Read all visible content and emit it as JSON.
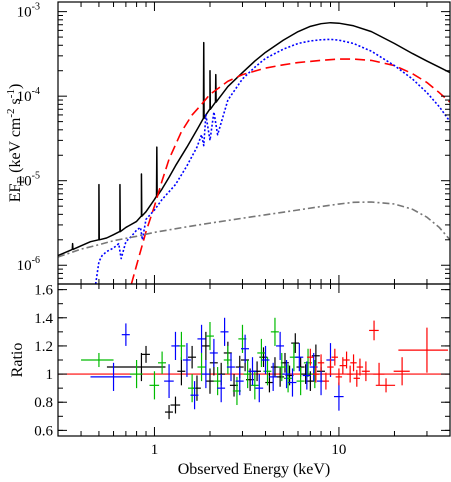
{
  "chart_data": [
    {
      "type": "line",
      "panel": "spectrum",
      "xlabel": "",
      "ylabel": "EF_E (keV cm^-2 s^-1)",
      "ylabel_parts": {
        "base": "EF",
        "sub": "E",
        "units_open": " (keV cm",
        "exp1": "-2",
        "mid": " s",
        "exp2": "-1",
        "close": ")"
      },
      "x_scale": "log",
      "y_scale": "log",
      "xlim": [
        0.3,
        40
      ],
      "ylim": [
        6e-07,
        0.0013
      ],
      "y_ticks": [
        {
          "value": 1e-06,
          "base": "10",
          "exp": "-6"
        },
        {
          "value": 1e-05,
          "base": "10",
          "exp": "-5"
        },
        {
          "value": 0.0001,
          "base": "10",
          "exp": "-4"
        },
        {
          "value": 0.001,
          "base": "10",
          "exp": "-3"
        }
      ],
      "series": [
        {
          "id": "total",
          "color": "#000000",
          "style": "solid",
          "x": [
            0.3,
            0.35,
            0.4,
            0.45,
            0.5,
            0.55,
            0.6,
            0.65,
            0.7,
            0.8,
            0.85,
            0.9,
            1.0,
            1.1,
            1.2,
            1.3,
            1.5,
            1.7,
            1.8,
            1.9,
            2.0,
            2.1,
            2.2,
            2.5,
            3.0,
            3.5,
            4.0,
            5.0,
            6.0,
            7.0,
            8.0,
            9.0,
            10.0,
            12.0,
            15.0,
            20.0,
            25.0,
            30.0,
            35.0,
            40.0
          ],
          "y": [
            1.3e-06,
            1.5e-06,
            1.7e-06,
            1.9e-06,
            2e-06,
            2.1e-06,
            2.3e-06,
            2.5e-06,
            2.8e-06,
            3.3e-06,
            3.8e-06,
            4.3e-06,
            6e-06,
            8e-06,
            1.1e-05,
            1.5e-05,
            2.5e-05,
            4e-05,
            5e-05,
            6e-05,
            7e-05,
            8e-05,
            9e-05,
            0.00013,
            0.00019,
            0.00026,
            0.00033,
            0.00046,
            0.00058,
            0.00067,
            0.00072,
            0.00074,
            0.00073,
            0.00068,
            0.00058,
            0.00042,
            0.00032,
            0.00026,
            0.00022,
            0.00019
          ],
          "lines": [
            {
              "x": 0.36,
              "peak": 1.8e-06
            },
            {
              "x": 0.5,
              "peak": 9e-06
            },
            {
              "x": 0.65,
              "peak": 9e-06
            },
            {
              "x": 0.85,
              "peak": 1.2e-05
            },
            {
              "x": 1.03,
              "peak": 2.5e-05
            },
            {
              "x": 1.85,
              "peak": 0.00043
            },
            {
              "x": 2.0,
              "peak": 0.0002
            },
            {
              "x": 2.15,
              "peak": 0.00018
            }
          ]
        },
        {
          "id": "red-component",
          "color": "#ff0000",
          "style": "dashed",
          "x": [
            0.75,
            0.8,
            0.85,
            0.9,
            1.0,
            1.1,
            1.2,
            1.4,
            1.6,
            1.8,
            2.0,
            2.5,
            3.0,
            4.0,
            5.0,
            6.0,
            8.0,
            10.0,
            12.0,
            15.0,
            20.0,
            25.0,
            30.0,
            35.0,
            40.0
          ],
          "y": [
            6e-07,
            1e-06,
            1.6e-06,
            2.5e-06,
            5e-06,
            1e-05,
            1.8e-05,
            3.8e-05,
            6e-05,
            8e-05,
            0.000105,
            0.00015,
            0.00018,
            0.000215,
            0.000235,
            0.00025,
            0.000265,
            0.000275,
            0.000275,
            0.000265,
            0.00023,
            0.000185,
            0.000145,
            0.00011,
            8.5e-05
          ]
        },
        {
          "id": "blue-component",
          "color": "#0000ff",
          "style": "dotted",
          "x": [
            0.48,
            0.5,
            0.52,
            0.55,
            0.6,
            0.64,
            0.66,
            0.7,
            0.75,
            0.8,
            0.84,
            0.86,
            0.9,
            1.0,
            1.1,
            1.3,
            1.5,
            1.7,
            1.8,
            1.85,
            1.9,
            2.0,
            2.1,
            2.2,
            2.5,
            3.0,
            3.5,
            4.0,
            5.0,
            6.0,
            7.0,
            8.0,
            9.0,
            10.0,
            12.0,
            15.0,
            20.0,
            25.0,
            30.0,
            35.0,
            40.0
          ],
          "y": [
            6e-07,
            1.1e-06,
            1.3e-06,
            1.45e-06,
            1.6e-06,
            1.8e-06,
            1.2e-06,
            1.9e-06,
            2.2e-06,
            2.6e-06,
            2.8e-06,
            2e-06,
            3.5e-06,
            4.5e-06,
            6e-06,
            9e-06,
            1.5e-05,
            2.5e-05,
            3.5e-05,
            2.6e-05,
            6e-05,
            3e-05,
            6.5e-05,
            3.5e-05,
            9e-05,
            0.00016,
            0.00022,
            0.00028,
            0.00036,
            0.00042,
            0.00045,
            0.000465,
            0.00047,
            0.00046,
            0.00042,
            0.00034,
            0.00023,
            0.00016,
            0.00011,
            7.5e-05,
            5e-05
          ]
        },
        {
          "id": "grey-component",
          "color": "#777777",
          "style": "dashdot",
          "x": [
            0.3,
            0.4,
            0.5,
            0.6,
            0.8,
            1.0,
            1.5,
            2.0,
            3.0,
            4.0,
            6.0,
            8.0,
            10.0,
            12.0,
            15.0,
            20.0,
            25.0,
            30.0,
            35.0,
            40.0
          ],
          "y": [
            1.25e-06,
            1.55e-06,
            1.75e-06,
            1.95e-06,
            2.2e-06,
            2.45e-06,
            2.85e-06,
            3.15e-06,
            3.6e-06,
            3.95e-06,
            4.5e-06,
            4.95e-06,
            5.3e-06,
            5.55e-06,
            5.6e-06,
            5.3e-06,
            4.6e-06,
            3.7e-06,
            2.8e-06,
            2e-06
          ]
        }
      ]
    },
    {
      "type": "scatter",
      "panel": "ratio",
      "xlabel": "Observed Energy (keV)",
      "ylabel": "Ratio",
      "x_scale": "log",
      "xlim": [
        0.3,
        40
      ],
      "ylim": [
        0.56,
        1.64
      ],
      "y_ticks": [
        "0.6",
        "0.8",
        "1",
        "1.2",
        "1.4",
        "1.6"
      ],
      "x_ticks": [
        {
          "value": 1,
          "label": "1"
        },
        {
          "value": 10,
          "label": "10"
        }
      ],
      "reference": {
        "y": 1.0,
        "color": "#ff0000"
      },
      "series": [
        {
          "id": "black-data",
          "color": "#000000",
          "points": [
            [
              0.85,
              1.05,
              0.35,
              0.1
            ],
            [
              0.9,
              1.14,
              0.05,
              0.06
            ],
            [
              1.2,
              0.73,
              0.05,
              0.05
            ],
            [
              1.3,
              0.78,
              0.06,
              0.06
            ],
            [
              1.4,
              1.02,
              0.05,
              0.1
            ],
            [
              1.6,
              1.12,
              0.05,
              0.08
            ],
            [
              1.7,
              0.9,
              0.05,
              0.09
            ],
            [
              1.9,
              1.2,
              0.05,
              0.1
            ],
            [
              2.0,
              0.95,
              0.05,
              0.09
            ],
            [
              2.1,
              1.08,
              0.05,
              0.09
            ],
            [
              2.3,
              1.0,
              0.05,
              0.08
            ],
            [
              2.5,
              1.15,
              0.05,
              0.08
            ],
            [
              2.7,
              0.92,
              0.05,
              0.08
            ],
            [
              2.9,
              1.05,
              0.05,
              0.08
            ],
            [
              3.1,
              1.1,
              0.05,
              0.08
            ],
            [
              3.3,
              0.96,
              0.05,
              0.08
            ],
            [
              3.6,
              1.02,
              0.05,
              0.07
            ],
            [
              3.9,
              1.12,
              0.05,
              0.07
            ],
            [
              4.2,
              0.94,
              0.05,
              0.07
            ],
            [
              4.5,
              1.05,
              0.05,
              0.07
            ],
            [
              4.8,
              0.98,
              0.05,
              0.07
            ],
            [
              5.1,
              1.08,
              0.05,
              0.07
            ],
            [
              5.4,
              0.99,
              0.05,
              0.07
            ],
            [
              5.8,
              1.22,
              0.05,
              0.07
            ],
            [
              6.2,
              1.05,
              0.05,
              0.07
            ],
            [
              6.6,
              1.0,
              0.05,
              0.07
            ],
            [
              7.0,
              0.95,
              0.05,
              0.07
            ],
            [
              7.5,
              1.13,
              0.05,
              0.08
            ],
            [
              8.0,
              1.02,
              0.05,
              0.08
            ]
          ]
        },
        {
          "id": "green-data",
          "color": "#00bb00",
          "points": [
            [
              0.5,
              1.1,
              0.2,
              0.05
            ],
            [
              0.8,
              1.0,
              0.08,
              0.1
            ],
            [
              1.0,
              0.92,
              0.06,
              0.1
            ],
            [
              1.1,
              1.08,
              0.05,
              0.08
            ],
            [
              1.4,
              1.2,
              0.05,
              0.1
            ],
            [
              1.6,
              0.9,
              0.05,
              0.1
            ],
            [
              1.8,
              1.05,
              0.05,
              0.1
            ],
            [
              2.0,
              1.27,
              0.05,
              0.1
            ],
            [
              2.2,
              0.95,
              0.05,
              0.1
            ],
            [
              2.5,
              1.1,
              0.05,
              0.1
            ],
            [
              2.8,
              0.88,
              0.05,
              0.1
            ],
            [
              3.0,
              1.25,
              0.05,
              0.1
            ],
            [
              3.2,
              1.0,
              0.05,
              0.1
            ],
            [
              3.5,
              0.92,
              0.05,
              0.1
            ],
            [
              3.8,
              1.15,
              0.05,
              0.1
            ],
            [
              4.1,
              1.02,
              0.05,
              0.1
            ],
            [
              4.5,
              1.3,
              0.05,
              0.1
            ],
            [
              4.9,
              1.05,
              0.05,
              0.1
            ],
            [
              5.3,
              0.97,
              0.05,
              0.1
            ],
            [
              5.7,
              1.12,
              0.05,
              0.1
            ],
            [
              6.2,
              0.95,
              0.05,
              0.1
            ],
            [
              6.8,
              1.08,
              0.05,
              0.1
            ],
            [
              7.4,
              1.0,
              0.05,
              0.1
            ]
          ]
        },
        {
          "id": "blue-data",
          "color": "#0000ff",
          "points": [
            [
              0.6,
              0.98,
              0.25,
              0.1
            ],
            [
              0.7,
              1.28,
              0.05,
              0.08
            ],
            [
              1.2,
              0.95,
              0.06,
              0.12
            ],
            [
              1.3,
              1.2,
              0.05,
              0.1
            ],
            [
              1.5,
              1.1,
              0.05,
              0.12
            ],
            [
              1.65,
              0.85,
              0.05,
              0.1
            ],
            [
              1.8,
              1.25,
              0.05,
              0.1
            ],
            [
              1.9,
              1.0,
              0.05,
              0.1
            ],
            [
              2.1,
              1.15,
              0.05,
              0.1
            ],
            [
              2.3,
              0.9,
              0.05,
              0.1
            ],
            [
              2.4,
              1.3,
              0.05,
              0.1
            ],
            [
              2.6,
              1.05,
              0.05,
              0.1
            ],
            [
              2.9,
              0.95,
              0.05,
              0.1
            ],
            [
              3.1,
              1.18,
              0.05,
              0.1
            ],
            [
              3.4,
              1.02,
              0.05,
              0.1
            ],
            [
              3.7,
              0.9,
              0.05,
              0.1
            ],
            [
              4.0,
              1.1,
              0.05,
              0.1
            ],
            [
              4.4,
              0.98,
              0.05,
              0.1
            ],
            [
              4.8,
              1.2,
              0.05,
              0.1
            ],
            [
              5.2,
              1.0,
              0.05,
              0.1
            ],
            [
              5.6,
              0.94,
              0.05,
              0.1
            ],
            [
              6.1,
              1.12,
              0.05,
              0.1
            ],
            [
              6.7,
              0.99,
              0.05,
              0.1
            ],
            [
              7.3,
              1.05,
              0.05,
              0.1
            ],
            [
              8.0,
              0.95,
              0.05,
              0.1
            ],
            [
              9.0,
              1.1,
              0.05,
              0.12
            ],
            [
              10.0,
              0.84,
              0.06,
              0.1
            ]
          ]
        },
        {
          "id": "red-data",
          "color": "#ff0000",
          "points": [
            [
              7.0,
              1.12,
              0.04,
              0.06
            ],
            [
              7.5,
              1.0,
              0.04,
              0.06
            ],
            [
              8.0,
              1.08,
              0.04,
              0.06
            ],
            [
              8.5,
              0.95,
              0.04,
              0.06
            ],
            [
              9.0,
              1.05,
              0.04,
              0.06
            ],
            [
              9.5,
              1.12,
              0.04,
              0.06
            ],
            [
              10.0,
              0.98,
              0.04,
              0.06
            ],
            [
              10.5,
              1.06,
              0.04,
              0.06
            ],
            [
              11.0,
              1.1,
              0.04,
              0.06
            ],
            [
              11.5,
              1.0,
              0.04,
              0.06
            ],
            [
              12.0,
              1.08,
              0.04,
              0.06
            ],
            [
              12.5,
              0.97,
              0.04,
              0.06
            ],
            [
              13.0,
              1.05,
              0.04,
              0.06
            ],
            [
              14.0,
              1.02,
              0.05,
              0.07
            ],
            [
              15.5,
              1.31,
              0.06,
              0.07
            ],
            [
              16.5,
              1.0,
              0.07,
              0.08
            ],
            [
              18.0,
              0.92,
              0.12,
              0.05
            ],
            [
              22.0,
              1.02,
              0.1,
              0.1
            ],
            [
              30.0,
              1.17,
              0.3,
              0.16
            ]
          ]
        }
      ]
    }
  ]
}
